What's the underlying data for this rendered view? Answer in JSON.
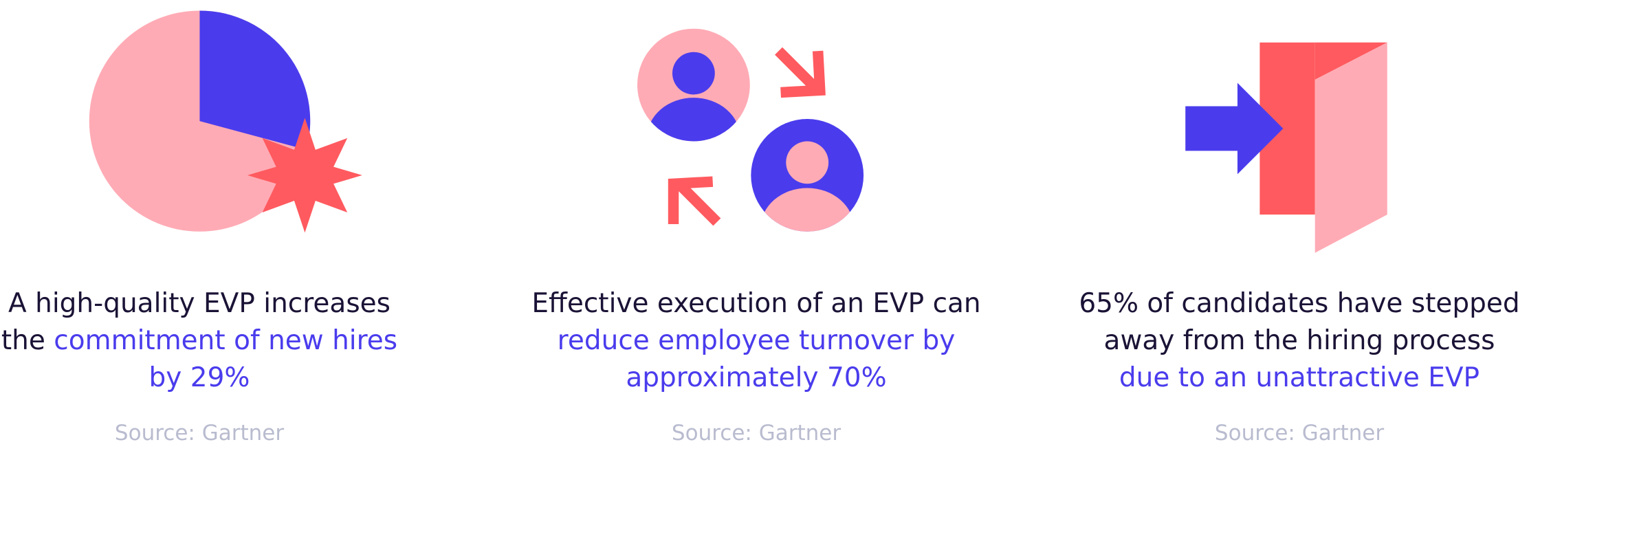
{
  "cards": [
    {
      "text": "A high-quality EVP increases the",
      "highlight": "commitment of new hires by 29%",
      "source": "Source: Gartner"
    },
    {
      "text": "Effective execution of an EVP can",
      "highlight": "reduce employee turnover by approximately 70%",
      "source": "Source: Gartner"
    },
    {
      "text": "65% of candidates have stepped away from the hiring process",
      "highlight": "due to an unattractive EVP",
      "source": "Source: Gartner"
    }
  ]
}
